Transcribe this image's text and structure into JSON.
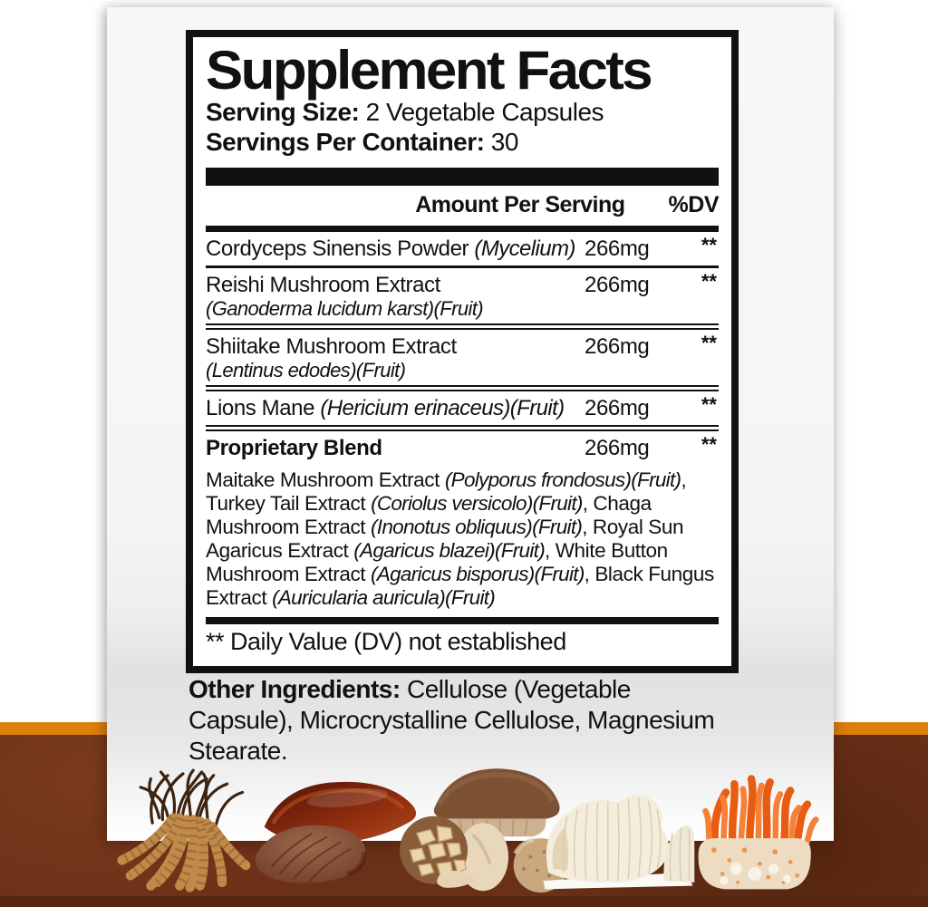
{
  "colors": {
    "accent": "#dd7f0e",
    "brown": "#6b3018",
    "brown_dark": "#54250f",
    "card": "#f6f6f6",
    "ink": "#111111"
  },
  "label": {
    "title": "Supplement Facts",
    "serving_size_label": "Serving Size:",
    "serving_size_value": " 2 Vegetable Capsules",
    "servings_label": "Servings Per Container:",
    "servings_value": " 30",
    "col_amount": "Amount Per Serving",
    "col_dv": "%DV",
    "rows": [
      {
        "name": [
          {
            "t": "Cordyceps Sinensis Powder ",
            "i": false
          },
          {
            "t": "(Mycelium)",
            "i": true
          }
        ],
        "sub": null,
        "bold": false,
        "amount": "266mg",
        "dv": "**",
        "sep": "single"
      },
      {
        "name": [
          {
            "t": "Reishi Mushroom Extract",
            "i": false
          }
        ],
        "sub": "(Ganoderma lucidum karst)(Fruit)",
        "bold": false,
        "amount": "266mg",
        "dv": "**",
        "sep": "double"
      },
      {
        "name": [
          {
            "t": "Shiitake Mushroom Extract",
            "i": false
          }
        ],
        "sub": "(Lentinus edodes)(Fruit)",
        "bold": false,
        "amount": "266mg",
        "dv": "**",
        "sep": "double"
      },
      {
        "name": [
          {
            "t": "Lions Mane ",
            "i": false
          },
          {
            "t": "(Hericium erinaceus)(Fruit)",
            "i": true
          }
        ],
        "sub": null,
        "bold": false,
        "amount": "266mg",
        "dv": "**",
        "sep": "double"
      },
      {
        "name": [
          {
            "t": "Proprietary Blend",
            "i": false
          }
        ],
        "sub": null,
        "bold": true,
        "amount": "266mg",
        "dv": "**",
        "sep": "none"
      }
    ],
    "blend_segments": [
      {
        "t": "Maitake Mushroom Extract ",
        "i": false
      },
      {
        "t": "(Polyporus frondosus)(Fruit)",
        "i": true
      },
      {
        "t": ", Turkey Tail Extract ",
        "i": false
      },
      {
        "t": "(Coriolus versicolo)(Fruit)",
        "i": true
      },
      {
        "t": ", Chaga Mushroom Extract ",
        "i": false
      },
      {
        "t": "(Inonotus obliquus)(Fruit)",
        "i": true
      },
      {
        "t": ", Royal Sun Agaricus Extract ",
        "i": false
      },
      {
        "t": "(Agaricus blazei)(Fruit)",
        "i": true
      },
      {
        "t": ", White Button Mushroom Extract ",
        "i": false
      },
      {
        "t": "(Agaricus bisporus)(Fruit)",
        "i": true
      },
      {
        "t": ", Black Fungus Extract ",
        "i": false
      },
      {
        "t": "(Auricularia auricula)(Fruit)",
        "i": true
      }
    ],
    "footnote": "** Daily Value (DV) not established",
    "other_label": "Other Ingredients:",
    "other_value": " Cellulose (Vegetable Capsule), Microcrystalline Cellulose, Magnesium Stearate."
  },
  "images": [
    "cordyceps-sinensis-dried",
    "reishi-mushroom",
    "shiitake-mushrooms",
    "lions-mane-mushroom",
    "cordyceps-militaris"
  ]
}
